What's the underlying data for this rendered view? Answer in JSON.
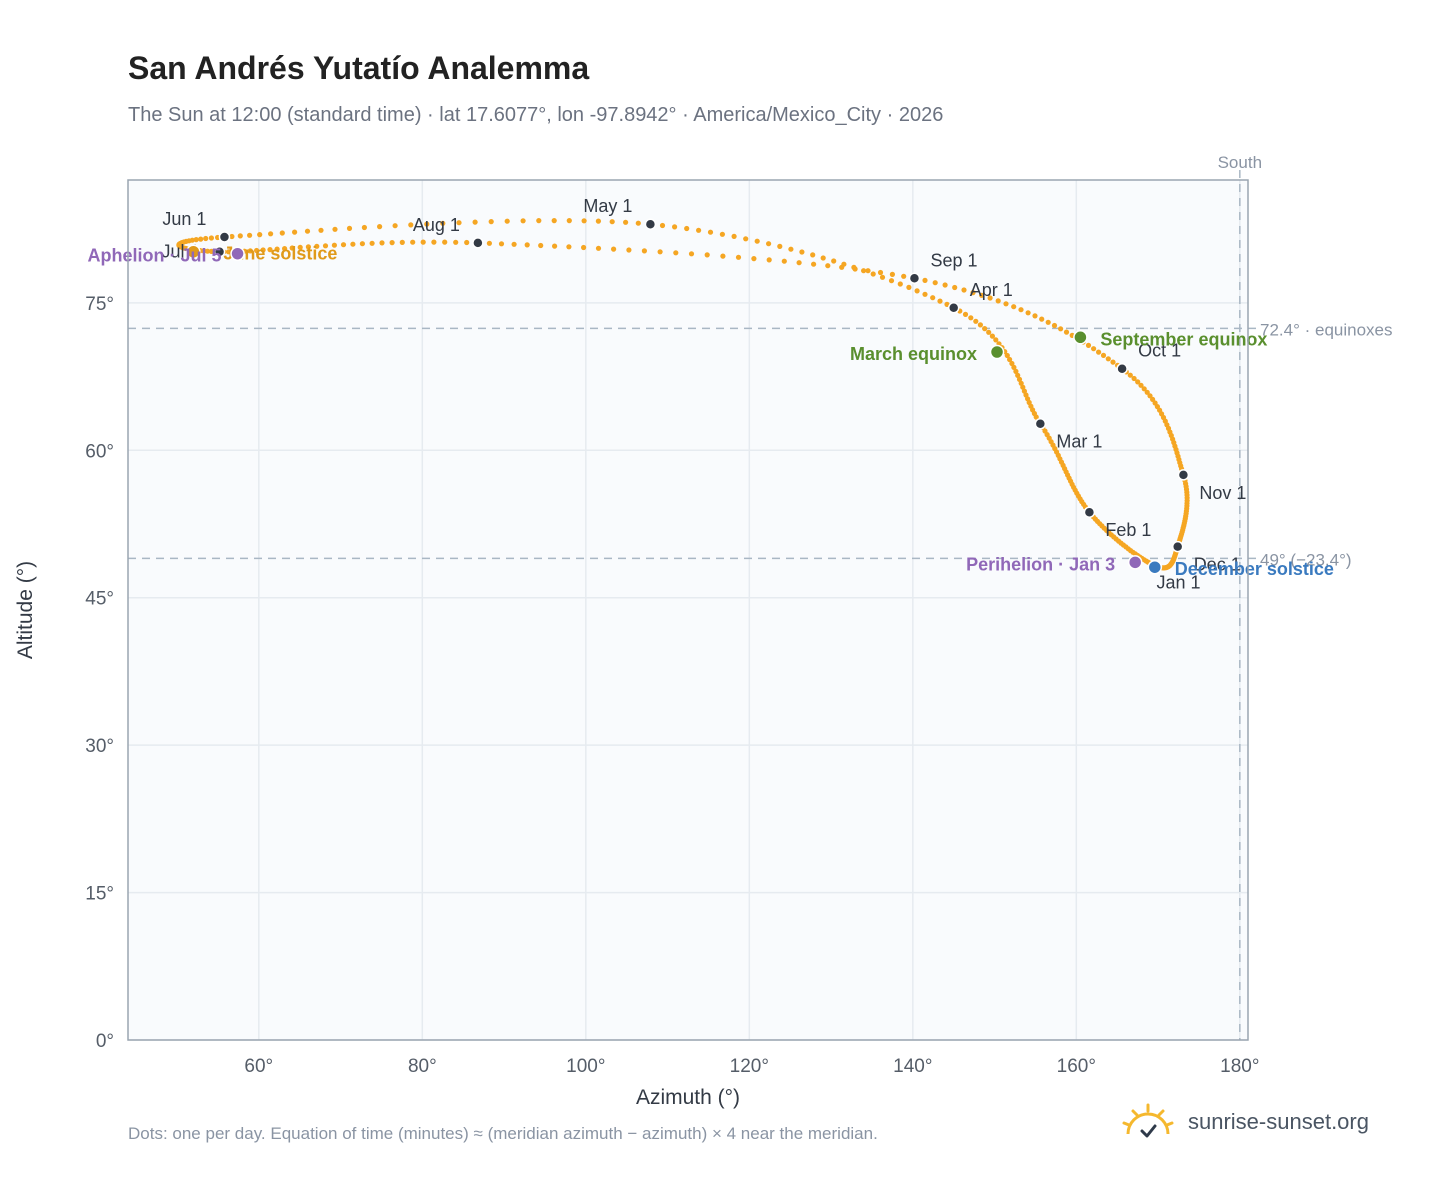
{
  "title": "San Andrés Yutatío Analemma",
  "subtitle": "The Sun at 12:00 (standard time) · lat 17.6077°, lon -97.8942° · America/Mexico_City · 2026",
  "footnote": "Dots: one per day. Equation of time (minutes) ≈ (meridian azimuth − azimuth) × 4 near the meridian.",
  "brand": {
    "name": "sunrise-sunset.org",
    "logo_icon": "sun-check-icon"
  },
  "colors": {
    "curve": "#f5a623",
    "month_marker": "#333a45",
    "equinox": "#5a8f2e",
    "december_solstice": "#3a7abf",
    "june_solstice": "#e09a1a",
    "perihelion_aphelion": "#9068b8",
    "reference_line": "#a9b7c4",
    "plot_bg": "#f9fbfd",
    "grid": "#e6ebf0"
  },
  "chart_data": {
    "type": "scatter",
    "xlabel": "Azimuth (°)",
    "ylabel": "Altitude (°)",
    "xlim": [
      44,
      181
    ],
    "ylim": [
      0,
      87.5
    ],
    "x_ticks": [
      60,
      80,
      100,
      120,
      140,
      160,
      180
    ],
    "x_tick_labels": [
      "60°",
      "80°",
      "100°",
      "120°",
      "140°",
      "160°",
      "180°"
    ],
    "y_ticks": [
      0,
      15,
      30,
      45,
      60,
      75
    ],
    "y_tick_labels": [
      "0°",
      "15°",
      "30°",
      "45°",
      "60°",
      "75°"
    ],
    "grid": true,
    "south_line": {
      "azimuth": 180,
      "label": "South"
    },
    "reference_lines": [
      {
        "altitude": 72.4,
        "label": "72.4° · equinoxes"
      },
      {
        "altitude": 49.0,
        "label": "49° (−23.4°)"
      }
    ],
    "month_markers": [
      {
        "label": "Jan 1",
        "azimuth": 169.8,
        "altitude": 48.2
      },
      {
        "label": "Feb 1",
        "azimuth": 161.6,
        "altitude": 53.7
      },
      {
        "label": "Mar 1",
        "azimuth": 155.6,
        "altitude": 62.7
      },
      {
        "label": "Apr 1",
        "azimuth": 145.0,
        "altitude": 74.5
      },
      {
        "label": "May 1",
        "azimuth": 107.9,
        "altitude": 83.0
      },
      {
        "label": "Jun 1",
        "azimuth": 55.8,
        "altitude": 81.7
      },
      {
        "label": "Jul 1",
        "azimuth": 55.2,
        "altitude": 80.2
      },
      {
        "label": "Aug 1",
        "azimuth": 86.8,
        "altitude": 81.1
      },
      {
        "label": "Sep 1",
        "azimuth": 140.2,
        "altitude": 77.5
      },
      {
        "label": "Oct 1",
        "azimuth": 165.6,
        "altitude": 68.3
      },
      {
        "label": "Nov 1",
        "azimuth": 173.1,
        "altitude": 57.5
      },
      {
        "label": "Dec 1",
        "azimuth": 172.4,
        "altitude": 50.2
      }
    ],
    "events": [
      {
        "label": "March equinox",
        "azimuth": 150.3,
        "altitude": 70.0,
        "kind": "equinox"
      },
      {
        "label": "September equinox",
        "azimuth": 160.5,
        "altitude": 71.5,
        "kind": "equinox"
      },
      {
        "label": "December solstice",
        "azimuth": 169.6,
        "altitude": 48.1,
        "kind": "december_solstice"
      },
      {
        "label": "June solstice",
        "azimuth": 52.0,
        "altitude": 80.2,
        "kind": "june_solstice"
      },
      {
        "label": "Perihelion · Jan 3",
        "azimuth": 167.2,
        "altitude": 48.6,
        "kind": "perihelion_aphelion"
      },
      {
        "label": "Aphelion · Jul 5",
        "azimuth": 57.4,
        "altitude": 80.0,
        "kind": "perihelion_aphelion"
      }
    ]
  }
}
